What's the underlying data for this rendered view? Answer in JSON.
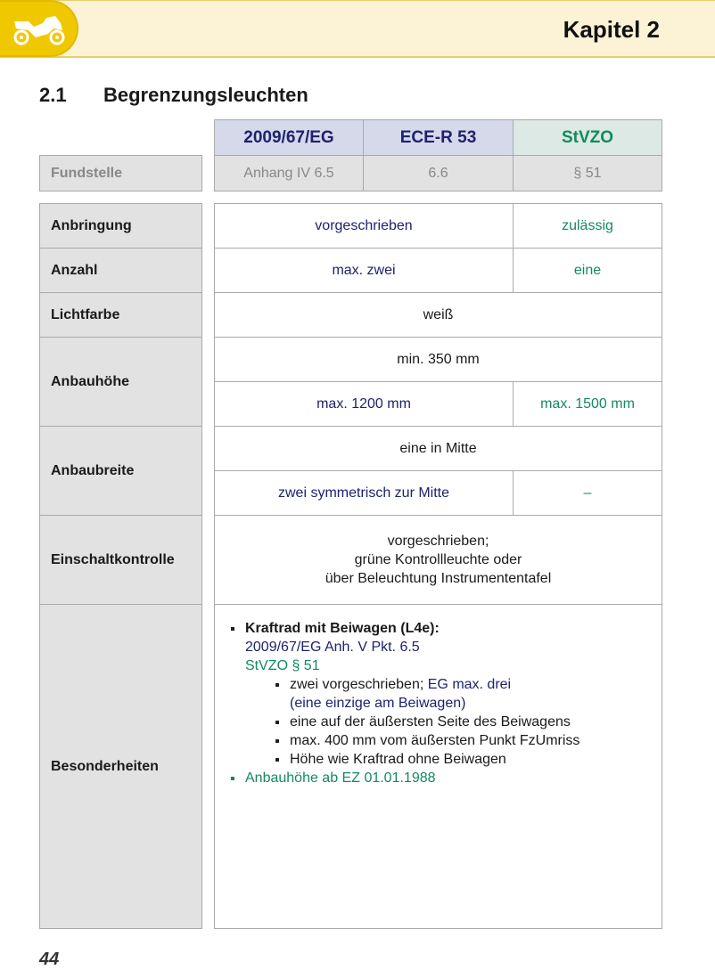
{
  "header": {
    "chapter": "Kapitel 2",
    "icon": "motorcycle-icon"
  },
  "section": {
    "number": "2.1",
    "title": "Begrenzungsleuchten"
  },
  "columns": [
    "2009/67/EG",
    "ECE-R 53",
    "StVZO"
  ],
  "fundstelle": {
    "label": "Fundstelle",
    "values": [
      "Anhang IV 6.5",
      "6.6",
      "§ 51"
    ]
  },
  "rows": {
    "anbringung": {
      "label": "Anbringung",
      "eu": "vorgeschrieben",
      "stvzo": "zulässig"
    },
    "anzahl": {
      "label": "Anzahl",
      "eu": "max. zwei",
      "stvzo": "eine"
    },
    "lichtfarbe": {
      "label": "Lichtfarbe",
      "all": "weiß"
    },
    "anbauhoehe": {
      "label": "Anbauhöhe",
      "all": "min. 350 mm",
      "eu": "max. 1200 mm",
      "stvzo": "max. 1500 mm"
    },
    "anbaubreite": {
      "label": "Anbaubreite",
      "all": "eine in Mitte",
      "eu": "zwei symmetrisch zur Mitte",
      "stvzo": "–"
    },
    "einschalt": {
      "label": "Einschaltkontrolle",
      "lines": [
        "vorgeschrieben;",
        "grüne Kontrollleuchte oder",
        "über Beleuchtung Instrumententafel"
      ]
    },
    "besonderheiten": {
      "label": "Besonderheiten",
      "heading": "Kraftrad mit Beiwagen (L4e):",
      "ref_eu": "2009/67/EG Anh. V Pkt. 6.5",
      "ref_stvzo": "StVZO § 51",
      "item1_a": "zwei vorgeschrieben; ",
      "item1_b": "EG max. drei",
      "item1_c": "(eine einzige am Beiwagen)",
      "item2": "eine auf der äußersten Seite des Beiwagens",
      "item3": "max. 400 mm vom äußersten Punkt FzUmriss",
      "item4": "Höhe wie Kraftrad ohne Beiwagen",
      "note": "Anbauhöhe ab EZ 01.01.1988"
    }
  },
  "page_number": "44",
  "colors": {
    "navy": "#1e226e",
    "green": "#138a5e",
    "yellow": "#f0c800"
  }
}
